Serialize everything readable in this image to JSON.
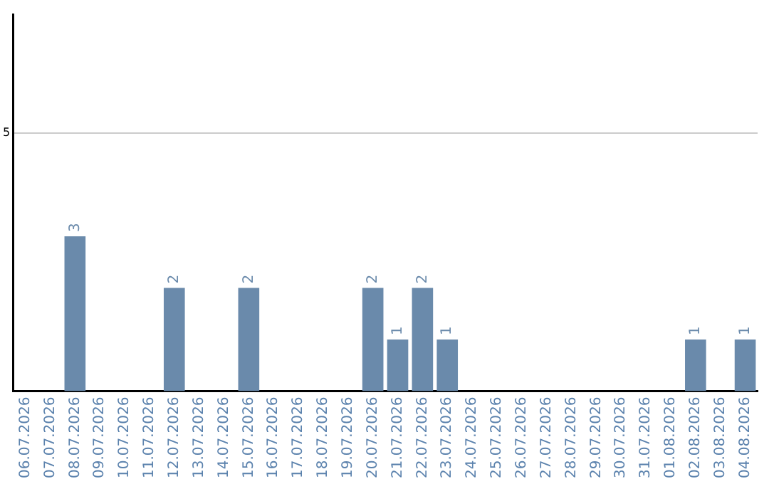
{
  "chart_data": {
    "type": "bar",
    "categories": [
      "06.07.2026",
      "07.07.2026",
      "08.07.2026",
      "09.07.2026",
      "10.07.2026",
      "11.07.2026",
      "12.07.2026",
      "13.07.2026",
      "14.07.2026",
      "15.07.2026",
      "16.07.2026",
      "17.07.2026",
      "18.07.2026",
      "19.07.2026",
      "20.07.2026",
      "21.07.2026",
      "22.07.2026",
      "23.07.2026",
      "24.07.2026",
      "25.07.2026",
      "26.07.2026",
      "27.07.2026",
      "28.07.2026",
      "29.07.2026",
      "30.07.2026",
      "31.07.2026",
      "01.08.2026",
      "02.08.2026",
      "03.08.2026",
      "04.08.2026"
    ],
    "values": [
      0,
      0,
      3,
      0,
      0,
      0,
      2,
      0,
      0,
      2,
      0,
      0,
      0,
      0,
      2,
      1,
      2,
      1,
      0,
      0,
      0,
      0,
      0,
      0,
      0,
      0,
      0,
      1,
      0,
      1
    ],
    "value_labels": [
      null,
      null,
      "3",
      null,
      null,
      null,
      "2",
      null,
      null,
      "2",
      null,
      null,
      null,
      null,
      "2",
      "1",
      "2",
      "1",
      null,
      null,
      null,
      null,
      null,
      null,
      null,
      null,
      null,
      "1",
      null,
      "1"
    ],
    "color": "#6a8aab",
    "ylim": [
      0,
      7.3
    ],
    "yticks": [
      5
    ],
    "grid": "y",
    "legend": false
  }
}
